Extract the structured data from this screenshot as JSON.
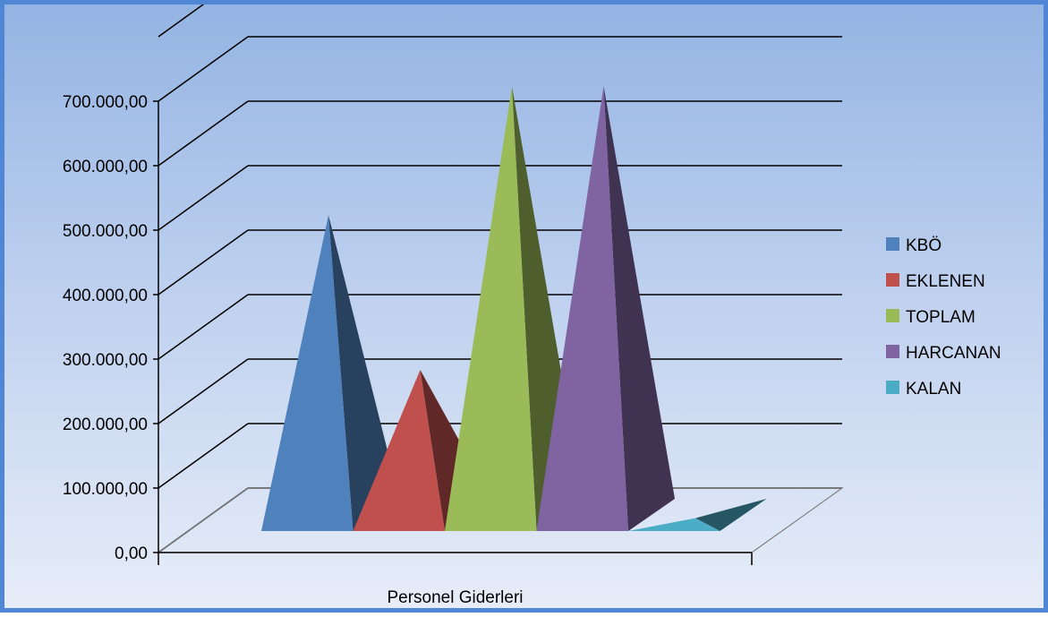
{
  "chart_data": {
    "type": "bar",
    "subtype": "3d-pyramid",
    "title": "",
    "xlabel": "",
    "ylabel": "",
    "categories": [
      "Personel Giderleri"
    ],
    "series": [
      {
        "name": "KBÖ",
        "values": [
          490000
        ],
        "color": "#4f81bd"
      },
      {
        "name": "EKLENEN",
        "values": [
          250000
        ],
        "color": "#c0504d"
      },
      {
        "name": "TOPLAM",
        "values": [
          690000
        ],
        "color": "#9bbb59"
      },
      {
        "name": "HARCANAN",
        "values": [
          690000
        ],
        "color": "#8064a2"
      },
      {
        "name": "KALAN",
        "values": [
          20000
        ],
        "color": "#4bacc6"
      }
    ],
    "ylim": [
      0,
      800000
    ],
    "yticks": [
      0,
      100000,
      200000,
      300000,
      400000,
      500000,
      600000,
      700000
    ],
    "ytick_labels": [
      "0,00",
      "100.000,00",
      "200.000,00",
      "300.000,00",
      "400.000,00",
      "500.000,00",
      "600.000,00",
      "700.000,00"
    ],
    "grid": true,
    "legend": "right"
  }
}
